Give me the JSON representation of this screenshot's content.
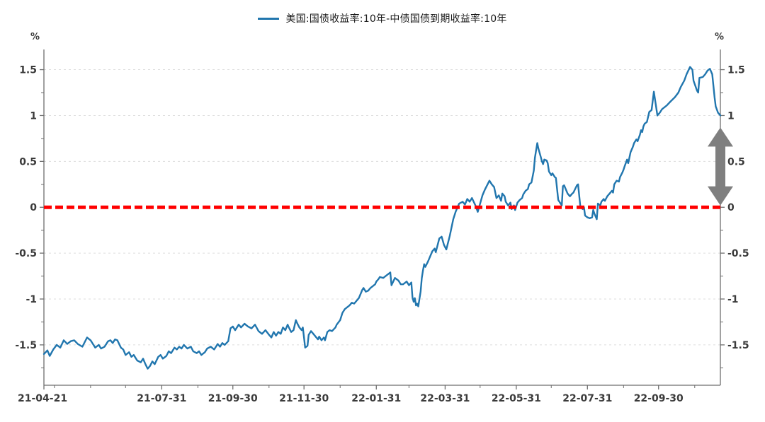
{
  "page": {
    "background": "#ffffff"
  },
  "legend": {
    "label": "美国:国债收益率:10年-中债国债到期收益率:10年",
    "swatch_color": "#2176ae"
  },
  "chart_data": {
    "type": "line",
    "title": "",
    "unit_left": "%",
    "unit_right": "%",
    "grid": {
      "show": true,
      "color": "#dcdcdc",
      "style": "dashed",
      "which": "y-major"
    },
    "x_axis": {
      "start_date": "2021-04-21",
      "tick_labels": [
        "21-04-21",
        "21-07-31",
        "21-09-30",
        "21-11-30",
        "22-01-31",
        "22-03-31",
        "22-05-31",
        "22-07-31",
        "22-09-30"
      ],
      "tick_days": [
        0,
        101,
        162,
        223,
        285,
        344,
        405,
        466,
        527
      ],
      "minor_tick_days": [
        9,
        40,
        70,
        132,
        193,
        254,
        313,
        374,
        435,
        497,
        558
      ],
      "range_days": [
        0,
        580
      ]
    },
    "y_axis": {
      "tick_labels": [
        "1.5",
        "1",
        "0.5",
        "0",
        "-0.5",
        "-1",
        "-1.5"
      ],
      "tick_values": [
        1.5,
        1,
        0.5,
        0,
        -0.5,
        -1,
        -1.5
      ],
      "minor_tick_values": [
        -1.75,
        -1.25,
        -0.75,
        -0.25,
        0.25,
        0.75,
        1.25
      ],
      "range": [
        -1.94,
        1.72
      ]
    },
    "zero_line": {
      "value": 0,
      "color": "#ff0000",
      "style": "dashed"
    },
    "annotation_arrow": {
      "x_day": 580,
      "value_from": 0.02,
      "value_to": 0.87,
      "color": "#7f7f7f"
    },
    "series": [
      {
        "name": "美国:国债收益率:10年-中债国债到期收益率:10年",
        "color": "#2176ae",
        "points": [
          [
            0,
            -1.6
          ],
          [
            3,
            -1.56
          ],
          [
            5,
            -1.62
          ],
          [
            8,
            -1.55
          ],
          [
            11,
            -1.5
          ],
          [
            14,
            -1.53
          ],
          [
            17,
            -1.45
          ],
          [
            20,
            -1.49
          ],
          [
            23,
            -1.46
          ],
          [
            26,
            -1.45
          ],
          [
            29,
            -1.49
          ],
          [
            33,
            -1.52
          ],
          [
            35,
            -1.47
          ],
          [
            37,
            -1.42
          ],
          [
            40,
            -1.45
          ],
          [
            42,
            -1.49
          ],
          [
            44,
            -1.53
          ],
          [
            47,
            -1.5
          ],
          [
            49,
            -1.54
          ],
          [
            52,
            -1.52
          ],
          [
            55,
            -1.46
          ],
          [
            57,
            -1.45
          ],
          [
            59,
            -1.48
          ],
          [
            61,
            -1.44
          ],
          [
            63,
            -1.45
          ],
          [
            66,
            -1.53
          ],
          [
            68,
            -1.55
          ],
          [
            70,
            -1.61
          ],
          [
            73,
            -1.58
          ],
          [
            75,
            -1.63
          ],
          [
            77,
            -1.61
          ],
          [
            80,
            -1.67
          ],
          [
            83,
            -1.69
          ],
          [
            85,
            -1.65
          ],
          [
            87,
            -1.71
          ],
          [
            89,
            -1.76
          ],
          [
            91,
            -1.73
          ],
          [
            93,
            -1.68
          ],
          [
            95,
            -1.71
          ],
          [
            98,
            -1.63
          ],
          [
            100,
            -1.61
          ],
          [
            102,
            -1.65
          ],
          [
            105,
            -1.62
          ],
          [
            107,
            -1.57
          ],
          [
            109,
            -1.59
          ],
          [
            112,
            -1.53
          ],
          [
            114,
            -1.55
          ],
          [
            116,
            -1.52
          ],
          [
            118,
            -1.54
          ],
          [
            120,
            -1.5
          ],
          [
            123,
            -1.54
          ],
          [
            126,
            -1.52
          ],
          [
            128,
            -1.57
          ],
          [
            131,
            -1.59
          ],
          [
            133,
            -1.57
          ],
          [
            135,
            -1.61
          ],
          [
            138,
            -1.58
          ],
          [
            140,
            -1.54
          ],
          [
            143,
            -1.52
          ],
          [
            146,
            -1.55
          ],
          [
            149,
            -1.49
          ],
          [
            151,
            -1.52
          ],
          [
            153,
            -1.48
          ],
          [
            155,
            -1.5
          ],
          [
            158,
            -1.46
          ],
          [
            160,
            -1.32
          ],
          [
            162,
            -1.3
          ],
          [
            164,
            -1.34
          ],
          [
            167,
            -1.28
          ],
          [
            169,
            -1.31
          ],
          [
            172,
            -1.27
          ],
          [
            175,
            -1.3
          ],
          [
            178,
            -1.32
          ],
          [
            181,
            -1.28
          ],
          [
            184,
            -1.35
          ],
          [
            187,
            -1.38
          ],
          [
            190,
            -1.34
          ],
          [
            193,
            -1.39
          ],
          [
            195,
            -1.42
          ],
          [
            197,
            -1.36
          ],
          [
            199,
            -1.4
          ],
          [
            201,
            -1.36
          ],
          [
            203,
            -1.38
          ],
          [
            205,
            -1.31
          ],
          [
            207,
            -1.34
          ],
          [
            209,
            -1.28
          ],
          [
            210,
            -1.31
          ],
          [
            212,
            -1.36
          ],
          [
            214,
            -1.34
          ],
          [
            216,
            -1.23
          ],
          [
            217,
            -1.26
          ],
          [
            219,
            -1.31
          ],
          [
            221,
            -1.34
          ],
          [
            222,
            -1.31
          ],
          [
            223,
            -1.42
          ],
          [
            224,
            -1.53
          ],
          [
            226,
            -1.51
          ],
          [
            227,
            -1.39
          ],
          [
            229,
            -1.35
          ],
          [
            231,
            -1.38
          ],
          [
            233,
            -1.41
          ],
          [
            235,
            -1.44
          ],
          [
            236,
            -1.41
          ],
          [
            238,
            -1.45
          ],
          [
            240,
            -1.42
          ],
          [
            241,
            -1.45
          ],
          [
            243,
            -1.36
          ],
          [
            245,
            -1.34
          ],
          [
            247,
            -1.35
          ],
          [
            250,
            -1.31
          ],
          [
            251,
            -1.28
          ],
          [
            254,
            -1.23
          ],
          [
            256,
            -1.15
          ],
          [
            258,
            -1.11
          ],
          [
            260,
            -1.09
          ],
          [
            262,
            -1.07
          ],
          [
            264,
            -1.04
          ],
          [
            266,
            -1.05
          ],
          [
            268,
            -1.02
          ],
          [
            270,
            -0.99
          ],
          [
            273,
            -0.9
          ],
          [
            274,
            -0.88
          ],
          [
            276,
            -0.92
          ],
          [
            278,
            -0.91
          ],
          [
            280,
            -0.88
          ],
          [
            282,
            -0.86
          ],
          [
            284,
            -0.84
          ],
          [
            285,
            -0.81
          ],
          [
            287,
            -0.78
          ],
          [
            288,
            -0.76
          ],
          [
            291,
            -0.77
          ],
          [
            293,
            -0.75
          ],
          [
            296,
            -0.72
          ],
          [
            297,
            -0.71
          ],
          [
            298,
            -0.85
          ],
          [
            301,
            -0.77
          ],
          [
            304,
            -0.8
          ],
          [
            306,
            -0.84
          ],
          [
            308,
            -0.84
          ],
          [
            311,
            -0.81
          ],
          [
            313,
            -0.85
          ],
          [
            315,
            -0.82
          ],
          [
            316,
            -0.98
          ],
          [
            317,
            -1.03
          ],
          [
            318,
            -0.99
          ],
          [
            319,
            -1.07
          ],
          [
            320,
            -1.05
          ],
          [
            321,
            -1.08
          ],
          [
            323,
            -0.92
          ],
          [
            324,
            -0.77
          ],
          [
            325,
            -0.69
          ],
          [
            326,
            -0.62
          ],
          [
            327,
            -0.65
          ],
          [
            329,
            -0.6
          ],
          [
            330,
            -0.57
          ],
          [
            333,
            -0.48
          ],
          [
            335,
            -0.45
          ],
          [
            336,
            -0.49
          ],
          [
            339,
            -0.34
          ],
          [
            341,
            -0.32
          ],
          [
            343,
            -0.41
          ],
          [
            345,
            -0.46
          ],
          [
            348,
            -0.31
          ],
          [
            351,
            -0.13
          ],
          [
            353,
            -0.05
          ],
          [
            356,
            0.04
          ],
          [
            359,
            0.06
          ],
          [
            361,
            0.03
          ],
          [
            363,
            0.09
          ],
          [
            365,
            0.06
          ],
          [
            367,
            0.1
          ],
          [
            370,
            0.02
          ],
          [
            372,
            -0.05
          ],
          [
            376,
            0.13
          ],
          [
            378,
            0.19
          ],
          [
            382,
            0.29
          ],
          [
            384,
            0.25
          ],
          [
            386,
            0.22
          ],
          [
            388,
            0.1
          ],
          [
            390,
            0.13
          ],
          [
            392,
            0.07
          ],
          [
            393,
            0.15
          ],
          [
            395,
            0.12
          ],
          [
            396,
            0.06
          ],
          [
            398,
            0.02
          ],
          [
            400,
            0.05
          ],
          [
            401,
            -0.02
          ],
          [
            403,
            0.02
          ],
          [
            404,
            -0.03
          ],
          [
            406,
            0.05
          ],
          [
            408,
            0.08
          ],
          [
            410,
            0.1
          ],
          [
            411,
            0.14
          ],
          [
            413,
            0.18
          ],
          [
            415,
            0.2
          ],
          [
            416,
            0.25
          ],
          [
            418,
            0.27
          ],
          [
            420,
            0.4
          ],
          [
            421,
            0.54
          ],
          [
            423,
            0.7
          ],
          [
            424,
            0.64
          ],
          [
            426,
            0.55
          ],
          [
            427,
            0.5
          ],
          [
            428,
            0.47
          ],
          [
            429,
            0.52
          ],
          [
            431,
            0.51
          ],
          [
            432,
            0.48
          ],
          [
            433,
            0.39
          ],
          [
            435,
            0.35
          ],
          [
            436,
            0.37
          ],
          [
            438,
            0.33
          ],
          [
            439,
            0.32
          ],
          [
            441,
            0.08
          ],
          [
            443,
            0.04
          ],
          [
            444,
            0.02
          ],
          [
            445,
            0.23
          ],
          [
            446,
            0.24
          ],
          [
            449,
            0.15
          ],
          [
            451,
            0.12
          ],
          [
            453,
            0.15
          ],
          [
            454,
            0.16
          ],
          [
            457,
            0.24
          ],
          [
            458,
            0.25
          ],
          [
            460,
            0.0
          ],
          [
            462,
            -0.02
          ],
          [
            463,
            0.0
          ],
          [
            464,
            -0.09
          ],
          [
            466,
            -0.11
          ],
          [
            468,
            -0.12
          ],
          [
            470,
            -0.11
          ],
          [
            471,
            -0.03
          ],
          [
            472,
            -0.07
          ],
          [
            474,
            -0.13
          ],
          [
            475,
            0.04
          ],
          [
            477,
            0.02
          ],
          [
            478,
            0.06
          ],
          [
            480,
            0.09
          ],
          [
            481,
            0.07
          ],
          [
            483,
            0.12
          ],
          [
            485,
            0.15
          ],
          [
            487,
            0.18
          ],
          [
            488,
            0.16
          ],
          [
            489,
            0.25
          ],
          [
            491,
            0.29
          ],
          [
            493,
            0.28
          ],
          [
            494,
            0.33
          ],
          [
            496,
            0.38
          ],
          [
            497,
            0.41
          ],
          [
            498,
            0.45
          ],
          [
            500,
            0.52
          ],
          [
            501,
            0.48
          ],
          [
            503,
            0.6
          ],
          [
            505,
            0.66
          ],
          [
            506,
            0.7
          ],
          [
            508,
            0.74
          ],
          [
            509,
            0.72
          ],
          [
            511,
            0.79
          ],
          [
            512,
            0.84
          ],
          [
            513,
            0.82
          ],
          [
            514,
            0.88
          ],
          [
            515,
            0.91
          ],
          [
            517,
            0.93
          ],
          [
            519,
            1.04
          ],
          [
            521,
            1.06
          ],
          [
            523,
            1.26
          ],
          [
            526,
            1.0
          ],
          [
            528,
            1.03
          ],
          [
            530,
            1.07
          ],
          [
            534,
            1.11
          ],
          [
            537,
            1.15
          ],
          [
            541,
            1.2
          ],
          [
            544,
            1.25
          ],
          [
            546,
            1.31
          ],
          [
            549,
            1.38
          ],
          [
            551,
            1.45
          ],
          [
            554,
            1.53
          ],
          [
            556,
            1.5
          ],
          [
            557,
            1.38
          ],
          [
            560,
            1.27
          ],
          [
            561,
            1.25
          ],
          [
            562,
            1.41
          ],
          [
            565,
            1.42
          ],
          [
            567,
            1.45
          ],
          [
            569,
            1.49
          ],
          [
            571,
            1.51
          ],
          [
            573,
            1.45
          ],
          [
            574,
            1.33
          ],
          [
            575,
            1.2
          ],
          [
            576,
            1.1
          ],
          [
            578,
            1.03
          ],
          [
            580,
            1.0
          ]
        ]
      }
    ]
  }
}
